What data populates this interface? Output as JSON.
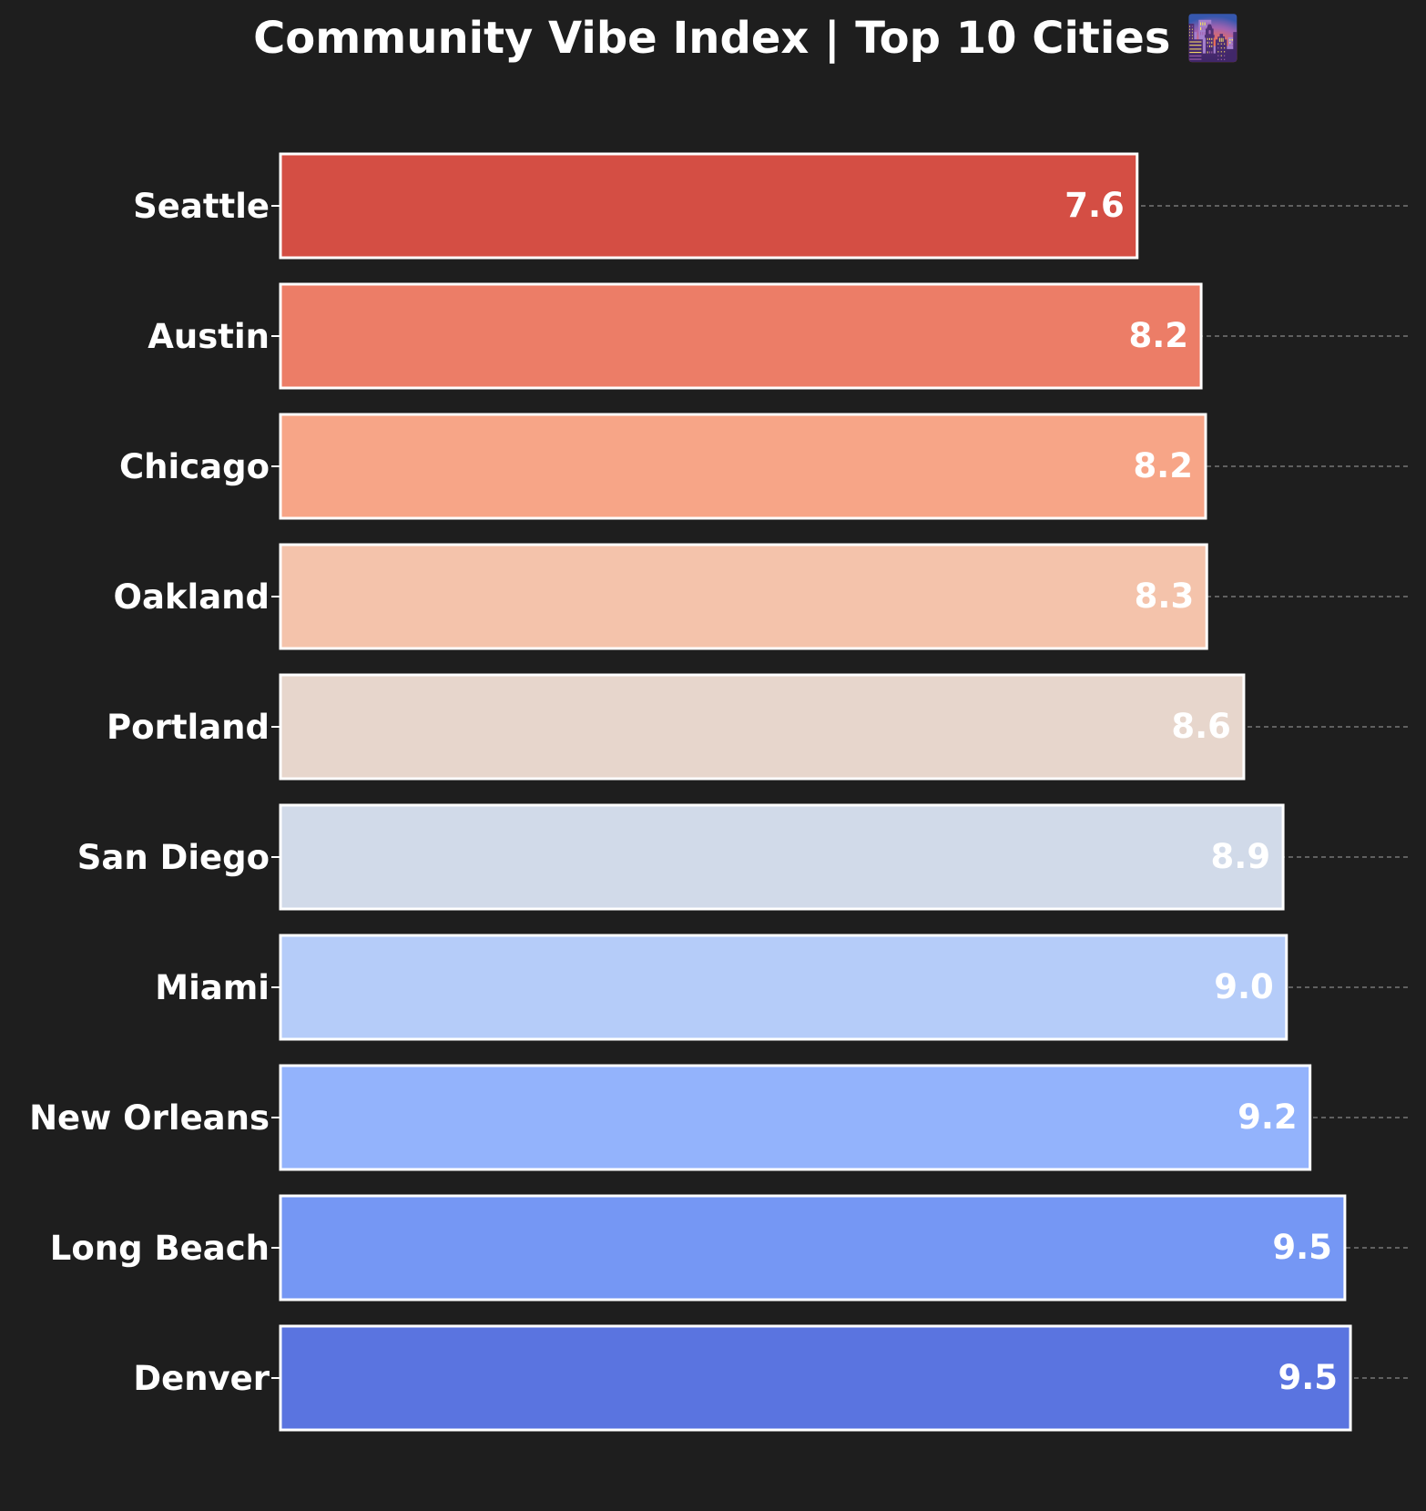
{
  "chart_data": {
    "type": "bar",
    "orientation": "horizontal",
    "title": "Community Vibe Index | Top 10 Cities 🌆",
    "xlabel": "",
    "ylabel": "",
    "xlim": [
      0,
      10
    ],
    "grid": "horizontal dashed lines at each category",
    "categories": [
      "Seattle",
      "Austin",
      "Chicago",
      "Oakland",
      "Portland",
      "San Diego",
      "Miami",
      "New Orleans",
      "Long Beach",
      "Denver"
    ],
    "values": [
      7.63,
      8.2,
      8.24,
      8.25,
      8.58,
      8.93,
      8.96,
      9.17,
      9.48,
      9.53
    ],
    "value_labels": [
      "7.6",
      "8.2",
      "8.2",
      "8.3",
      "8.6",
      "8.9",
      "9.0",
      "9.2",
      "9.5",
      "9.5"
    ],
    "colors": [
      "#d44e44",
      "#ec7d67",
      "#f7a587",
      "#f4c3ab",
      "#e7d6cc",
      "#d1dae9",
      "#b5ccf9",
      "#93b3fc",
      "#7597f4",
      "#5a74e0"
    ],
    "bar_edge_color": "#ffffff",
    "background": "#1e1e1e",
    "text_color": "#ffffff"
  }
}
